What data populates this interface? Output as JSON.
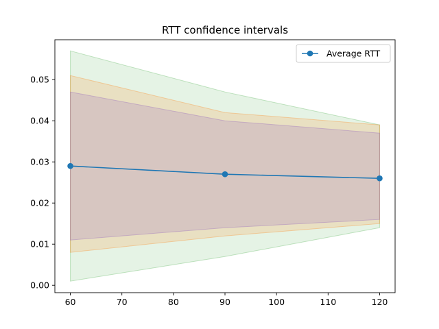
{
  "chart_data": {
    "type": "line",
    "title": "RTT confidence intervals",
    "xlabel": "",
    "ylabel": "",
    "x": [
      60,
      90,
      120
    ],
    "xlim": [
      57,
      123
    ],
    "ylim": [
      -0.0018,
      0.0597
    ],
    "xticks": [
      60,
      70,
      80,
      90,
      100,
      110,
      120
    ],
    "yticks": [
      0.0,
      0.01,
      0.02,
      0.03,
      0.04,
      0.05
    ],
    "xtick_labels": [
      "60",
      "70",
      "80",
      "90",
      "100",
      "110",
      "120"
    ],
    "ytick_labels": [
      "0.00",
      "0.01",
      "0.02",
      "0.03",
      "0.04",
      "0.05"
    ],
    "grid": false,
    "legend_position": "top-right",
    "series": [
      {
        "name": "Average RTT",
        "values": [
          0.029,
          0.027,
          0.026
        ],
        "color": "#1f77b4",
        "marker": "circle"
      }
    ],
    "bands": [
      {
        "lower": [
          0.001,
          0.007,
          0.014
        ],
        "upper": [
          0.057,
          0.047,
          0.039
        ],
        "color": "#2ca02c",
        "opacity": 0.12
      },
      {
        "lower": [
          0.008,
          0.012,
          0.015
        ],
        "upper": [
          0.051,
          0.042,
          0.039
        ],
        "color": "#ff7f0e",
        "opacity": 0.16
      },
      {
        "lower": [
          0.011,
          0.014,
          0.016
        ],
        "upper": [
          0.047,
          0.04,
          0.037
        ],
        "color": "#9467bd",
        "opacity": 0.22
      }
    ]
  }
}
